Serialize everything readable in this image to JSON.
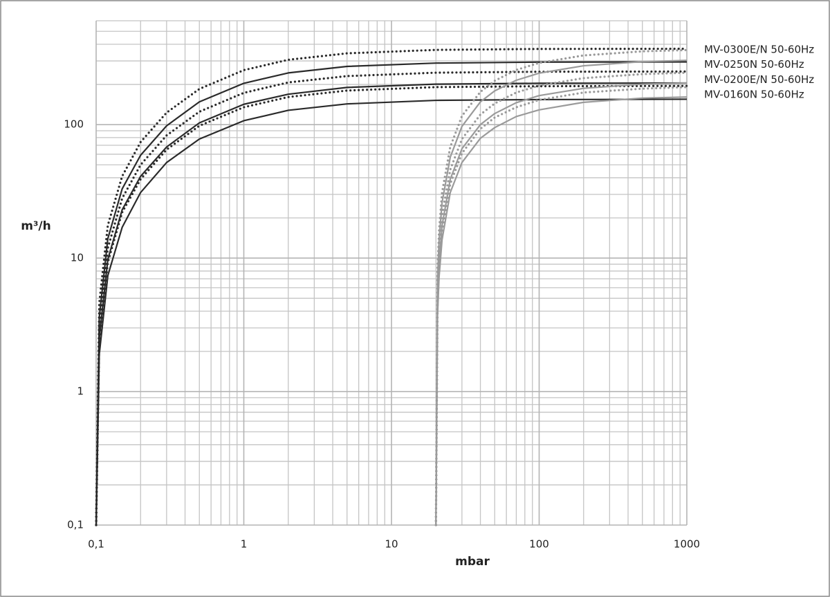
{
  "chart_data": {
    "type": "line",
    "xlabel": "mbar",
    "ylabel": "m³/h",
    "log_x": true,
    "log_y": true,
    "grid": true,
    "minor_grid": true,
    "xlim": [
      0.1,
      1000
    ],
    "ylim": [
      0.1,
      600
    ],
    "xticks": [
      {
        "value": 0.1,
        "label": "0,1"
      },
      1,
      10,
      100,
      1000
    ],
    "yticks": [
      {
        "value": 0.1,
        "label": "0,1"
      },
      1,
      10,
      100
    ],
    "series": [
      {
        "color": "#2a2a2a",
        "style": "dotted",
        "x": [
          0.1,
          0.105,
          0.12,
          0.15,
          0.2,
          0.3,
          0.5,
          1,
          2,
          5,
          20,
          100,
          1000
        ],
        "values": [
          0.1,
          4.6,
          17.6,
          41,
          74,
          123,
          185,
          256,
          306,
          342,
          363,
          369,
          370
        ]
      },
      {
        "color": "#2a2a2a",
        "style": "solid",
        "x": [
          0.1,
          0.105,
          0.12,
          0.15,
          0.2,
          0.3,
          0.5,
          1,
          2,
          5,
          20,
          100,
          1000
        ],
        "values": [
          0.1,
          3.6,
          14,
          33,
          59,
          98,
          148,
          204,
          244,
          273,
          289,
          294,
          295
        ]
      },
      {
        "color": "#2a2a2a",
        "style": "dotted",
        "x": [
          0.1,
          0.105,
          0.12,
          0.15,
          0.2,
          0.3,
          0.5,
          1,
          2,
          5,
          20,
          100,
          1000
        ],
        "values": [
          0.1,
          3.1,
          11.9,
          28,
          50,
          83,
          125,
          173,
          207,
          231,
          245,
          249,
          250
        ]
      },
      {
        "color": "#2a2a2a",
        "style": "solid",
        "x": [
          0.1,
          0.105,
          0.12,
          0.15,
          0.2,
          0.3,
          0.5,
          1,
          2,
          5,
          20,
          100,
          1000
        ],
        "values": [
          0.1,
          2.5,
          9.8,
          23,
          41,
          68,
          103,
          142,
          169,
          190,
          201,
          204,
          205
        ]
      },
      {
        "color": "#2a2a2a",
        "style": "dotted",
        "x": [
          0.1,
          0.105,
          0.12,
          0.15,
          0.2,
          0.3,
          0.5,
          1,
          2,
          5,
          20,
          100,
          1000
        ],
        "values": [
          0.1,
          2.4,
          9.3,
          22,
          39,
          65,
          98,
          135,
          161,
          180,
          191,
          194,
          195
        ]
      },
      {
        "color": "#2a2a2a",
        "style": "solid",
        "x": [
          0.1,
          0.105,
          0.12,
          0.15,
          0.2,
          0.3,
          0.5,
          1,
          2,
          5,
          20,
          100,
          1000
        ],
        "values": [
          0.1,
          1.9,
          7.4,
          17,
          31,
          52,
          78,
          107,
          128,
          143,
          152,
          154,
          155
        ]
      },
      {
        "name": "MV-0300E/N 50-60Hz",
        "color": "#9a9a9a",
        "style": "dotted",
        "x": [
          20,
          20.5,
          21,
          22,
          25,
          30,
          40,
          50,
          70,
          100,
          200,
          500,
          1000
        ],
        "values": [
          0.1,
          8.2,
          16,
          31,
          68,
          116,
          176,
          213,
          257,
          290,
          330,
          354,
          362
        ]
      },
      {
        "name": "MV-0250N 50-60Hz",
        "color": "#9a9a9a",
        "style": "solid",
        "x": [
          20,
          20.5,
          21,
          22,
          25,
          30,
          40,
          50,
          70,
          100,
          200,
          500,
          1000
        ],
        "values": [
          0.1,
          6.9,
          13.5,
          26,
          57,
          97,
          148,
          179,
          215,
          243,
          276,
          296,
          303
        ]
      },
      {
        "name": "MV-0200E/N 50-60Hz",
        "color": "#9a9a9a",
        "style": "dotted",
        "x": [
          20,
          20.5,
          21,
          22,
          25,
          30,
          40,
          50,
          70,
          100,
          200,
          500,
          1000
        ],
        "values": [
          0.1,
          5.6,
          10.9,
          21,
          46,
          78,
          119,
          144,
          174,
          196,
          223,
          239,
          245
        ]
      },
      {
        "color": "#9a9a9a",
        "style": "solid",
        "x": [
          20,
          20.5,
          21,
          22,
          25,
          30,
          40,
          50,
          70,
          100,
          200,
          500,
          1000
        ],
        "values": [
          0.1,
          4.7,
          9.1,
          17.5,
          39,
          66,
          100,
          121,
          146,
          165,
          187,
          201,
          205
        ]
      },
      {
        "color": "#9a9a9a",
        "style": "dotted",
        "x": [
          20,
          20.5,
          21,
          22,
          25,
          30,
          40,
          50,
          70,
          100,
          200,
          500,
          1000
        ],
        "values": [
          0.1,
          4.3,
          8.5,
          16,
          36,
          61,
          93,
          113,
          135,
          153,
          174,
          186,
          191
        ]
      },
      {
        "name": "MV-0160N 50-60Hz",
        "color": "#9a9a9a",
        "style": "solid",
        "x": [
          20,
          20.5,
          21,
          22,
          25,
          30,
          40,
          50,
          70,
          100,
          200,
          500,
          1000
        ],
        "values": [
          0.1,
          3.7,
          7.2,
          13.7,
          31,
          52,
          79,
          95,
          115,
          129,
          147,
          158,
          161
        ]
      }
    ]
  }
}
